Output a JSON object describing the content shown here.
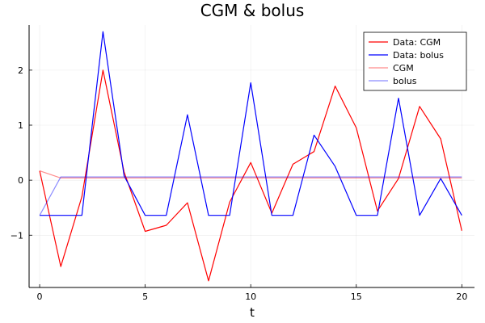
{
  "chart_data": {
    "type": "line",
    "title": "CGM & bolus",
    "xlabel": "t",
    "ylabel": "",
    "xlim": [
      -0.5,
      20.6
    ],
    "ylim": [
      -1.95,
      2.82
    ],
    "xticks": [
      0,
      5,
      10,
      15,
      20
    ],
    "xtick_labels": [
      "0",
      "5",
      "10",
      "15",
      "20"
    ],
    "yticks": [
      -1,
      0,
      1,
      2
    ],
    "ytick_labels": [
      "−1",
      "0",
      "1",
      "2"
    ],
    "grid": true,
    "legend_position": "top-right",
    "x": [
      0,
      1,
      2,
      3,
      4,
      5,
      6,
      7,
      8,
      9,
      10,
      11,
      12,
      13,
      14,
      15,
      16,
      17,
      18,
      19,
      20
    ],
    "series": [
      {
        "name": "Data: CGM",
        "color": "#ff0000",
        "opacity": 1,
        "values": [
          0.17,
          -1.57,
          -0.3,
          2.0,
          0.15,
          -0.93,
          -0.82,
          -0.41,
          -1.83,
          -0.4,
          0.32,
          -0.6,
          0.29,
          0.52,
          1.71,
          0.95,
          -0.56,
          0.03,
          1.34,
          0.75,
          -0.92
        ]
      },
      {
        "name": "Data: bolus",
        "color": "#0000ff",
        "opacity": 1,
        "values": [
          -0.64,
          -0.64,
          -0.64,
          2.7,
          0.08,
          -0.64,
          -0.64,
          1.19,
          -0.64,
          -0.64,
          1.77,
          -0.64,
          -0.64,
          0.82,
          0.25,
          -0.64,
          -0.64,
          1.49,
          -0.64,
          0.03,
          -0.64
        ]
      },
      {
        "name": "CGM",
        "color": "#ff0000",
        "opacity": 0.45,
        "values": [
          0.17,
          0.04,
          0.04,
          0.04,
          0.04,
          0.04,
          0.04,
          0.04,
          0.04,
          0.04,
          0.04,
          0.04,
          0.04,
          0.04,
          0.04,
          0.04,
          0.04,
          0.04,
          0.04,
          0.04,
          0.04
        ]
      },
      {
        "name": "bolus",
        "color": "#0000ff",
        "opacity": 0.45,
        "values": [
          -0.64,
          0.06,
          0.06,
          0.06,
          0.06,
          0.06,
          0.06,
          0.06,
          0.06,
          0.06,
          0.06,
          0.06,
          0.06,
          0.06,
          0.06,
          0.06,
          0.06,
          0.06,
          0.06,
          0.06,
          0.06
        ]
      }
    ]
  }
}
